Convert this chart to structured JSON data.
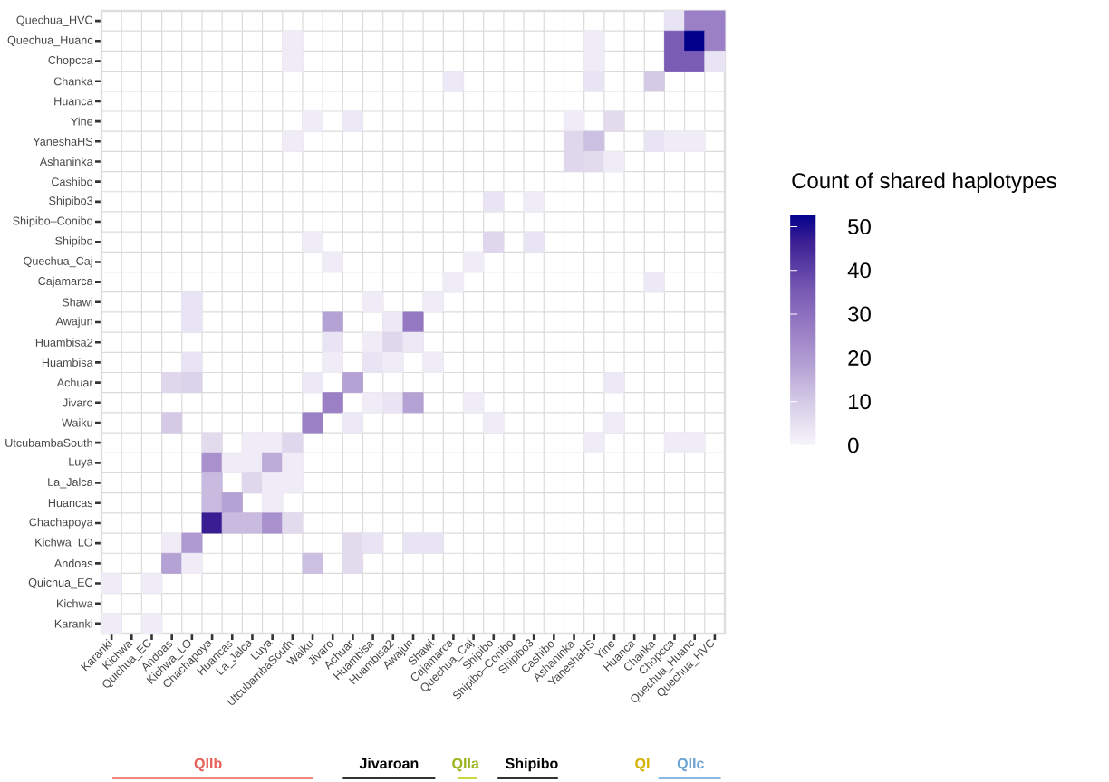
{
  "chart_data": {
    "type": "heatmap",
    "categories": [
      "Karanki",
      "Kichwa",
      "Quichua_EC",
      "Andoas",
      "Kichwa_LO",
      "Chachapoya",
      "Huancas",
      "La_Jalca",
      "Luya",
      "UtcubambaSouth",
      "Waiku",
      "Jivaro",
      "Achuar",
      "Huambisa",
      "Huambisa2",
      "Awajun",
      "Shawi",
      "Cajamarca",
      "Quechua_Caj",
      "Shipibo",
      "Shipibo–Conibo",
      "Shipibo3",
      "Cashibo",
      "Ashaninka",
      "YaneshaHS",
      "Yine",
      "Huanca",
      "Chanka",
      "Chopcca",
      "Quechua_Huanc",
      "Quechua_HVC"
    ],
    "y_categories": [
      "Quechua_HVC",
      "Quechua_Huanc",
      "Chopcca",
      "Chanka",
      "Huanca",
      "Yine",
      "YaneshaHS",
      "Ashaninka",
      "Cashibo",
      "Shipibo3",
      "Shipibo–Conibo",
      "Shipibo",
      "Quechua_Caj",
      "Cajamarca",
      "Shawi",
      "Awajun",
      "Huambisa2",
      "Huambisa",
      "Achuar",
      "Jivaro",
      "Waiku",
      "UtcubambaSouth",
      "Luya",
      "La_Jalca",
      "Huancas",
      "Chachapoya",
      "Kichwa_LO",
      "Andoas",
      "Quichua_EC",
      "Kichwa",
      "Karanki"
    ],
    "cells": [
      [
        null,
        null,
        null,
        null,
        null,
        null,
        null,
        null,
        null,
        null,
        null,
        null,
        null,
        null,
        null,
        null,
        null,
        null,
        null,
        null,
        null,
        null,
        null,
        null,
        null,
        null,
        null,
        null,
        4,
        26,
        26
      ],
      [
        null,
        null,
        null,
        null,
        null,
        null,
        null,
        null,
        null,
        2,
        null,
        null,
        null,
        null,
        null,
        null,
        null,
        null,
        null,
        null,
        null,
        null,
        null,
        null,
        2,
        null,
        null,
        null,
        35,
        53,
        26
      ],
      [
        null,
        null,
        null,
        null,
        null,
        null,
        null,
        null,
        null,
        2,
        null,
        null,
        null,
        null,
        null,
        null,
        null,
        null,
        null,
        null,
        null,
        null,
        null,
        null,
        2,
        null,
        null,
        null,
        35,
        35,
        4
      ],
      [
        null,
        null,
        null,
        null,
        null,
        null,
        null,
        null,
        null,
        null,
        null,
        null,
        null,
        null,
        null,
        null,
        null,
        3,
        null,
        null,
        null,
        null,
        null,
        null,
        4,
        null,
        null,
        10,
        null,
        null,
        null
      ],
      [
        null,
        null,
        null,
        null,
        null,
        null,
        null,
        null,
        null,
        null,
        null,
        null,
        null,
        null,
        null,
        null,
        null,
        null,
        null,
        null,
        null,
        null,
        null,
        null,
        null,
        null,
        null,
        null,
        null,
        null,
        null
      ],
      [
        null,
        null,
        null,
        null,
        null,
        null,
        null,
        null,
        null,
        null,
        2,
        null,
        3,
        null,
        null,
        null,
        null,
        null,
        null,
        null,
        null,
        null,
        null,
        2,
        null,
        6,
        null,
        null,
        null,
        null,
        null
      ],
      [
        null,
        null,
        null,
        null,
        null,
        null,
        null,
        null,
        null,
        2,
        null,
        null,
        null,
        null,
        null,
        null,
        null,
        null,
        null,
        null,
        null,
        null,
        null,
        7,
        12,
        null,
        null,
        4,
        2,
        2,
        null
      ],
      [
        null,
        null,
        null,
        null,
        null,
        null,
        null,
        null,
        null,
        null,
        null,
        null,
        null,
        null,
        null,
        null,
        null,
        null,
        null,
        null,
        null,
        null,
        null,
        7,
        6,
        2,
        null,
        null,
        null,
        null,
        null
      ],
      [
        null,
        null,
        null,
        null,
        null,
        null,
        null,
        null,
        null,
        null,
        null,
        null,
        null,
        null,
        null,
        null,
        null,
        null,
        null,
        null,
        null,
        null,
        null,
        null,
        null,
        null,
        null,
        null,
        null,
        null,
        null
      ],
      [
        null,
        null,
        null,
        null,
        null,
        null,
        null,
        null,
        null,
        null,
        null,
        null,
        null,
        null,
        null,
        null,
        null,
        null,
        null,
        4,
        null,
        2,
        null,
        null,
        null,
        null,
        null,
        null,
        null,
        null,
        null
      ],
      [
        null,
        null,
        null,
        null,
        null,
        null,
        null,
        null,
        null,
        null,
        null,
        null,
        null,
        null,
        null,
        null,
        null,
        null,
        null,
        null,
        null,
        null,
        null,
        null,
        null,
        null,
        null,
        null,
        null,
        null,
        null
      ],
      [
        null,
        null,
        null,
        null,
        null,
        null,
        null,
        null,
        null,
        null,
        2,
        null,
        null,
        null,
        null,
        null,
        null,
        null,
        null,
        7,
        null,
        4,
        null,
        null,
        null,
        null,
        null,
        null,
        null,
        null,
        null
      ],
      [
        null,
        null,
        null,
        null,
        null,
        null,
        null,
        null,
        null,
        null,
        null,
        2,
        null,
        null,
        null,
        null,
        null,
        null,
        2,
        null,
        null,
        null,
        null,
        null,
        null,
        null,
        null,
        null,
        null,
        null,
        null
      ],
      [
        null,
        null,
        null,
        null,
        null,
        null,
        null,
        null,
        null,
        null,
        null,
        null,
        null,
        null,
        null,
        null,
        null,
        2,
        null,
        null,
        null,
        null,
        null,
        null,
        null,
        null,
        null,
        3,
        null,
        null,
        null
      ],
      [
        null,
        null,
        null,
        null,
        4,
        null,
        null,
        null,
        null,
        null,
        null,
        null,
        null,
        2,
        null,
        null,
        2,
        null,
        null,
        null,
        null,
        null,
        null,
        null,
        null,
        null,
        null,
        null,
        null,
        null,
        null
      ],
      [
        null,
        null,
        null,
        null,
        4,
        null,
        null,
        null,
        null,
        null,
        null,
        18,
        null,
        null,
        3,
        28,
        null,
        null,
        null,
        null,
        null,
        null,
        null,
        null,
        null,
        null,
        null,
        null,
        null,
        null,
        null
      ],
      [
        null,
        null,
        null,
        null,
        null,
        null,
        null,
        null,
        null,
        null,
        null,
        4,
        null,
        2,
        7,
        3,
        null,
        null,
        null,
        null,
        null,
        null,
        null,
        null,
        null,
        null,
        null,
        null,
        null,
        null,
        null
      ],
      [
        null,
        null,
        null,
        null,
        4,
        null,
        null,
        null,
        null,
        null,
        null,
        2,
        null,
        4,
        2,
        null,
        2,
        null,
        null,
        null,
        null,
        null,
        null,
        null,
        null,
        null,
        null,
        null,
        null,
        null,
        null
      ],
      [
        null,
        null,
        null,
        7,
        8,
        null,
        null,
        null,
        null,
        null,
        3,
        null,
        18,
        null,
        null,
        null,
        null,
        null,
        null,
        null,
        null,
        null,
        null,
        null,
        null,
        3,
        null,
        null,
        null,
        null,
        null
      ],
      [
        null,
        null,
        null,
        null,
        null,
        null,
        null,
        null,
        null,
        null,
        null,
        26,
        null,
        2,
        4,
        18,
        null,
        null,
        2,
        null,
        null,
        null,
        null,
        null,
        null,
        null,
        null,
        null,
        null,
        null,
        null
      ],
      [
        null,
        null,
        null,
        10,
        null,
        null,
        null,
        null,
        null,
        null,
        26,
        null,
        3,
        null,
        null,
        null,
        null,
        null,
        null,
        2,
        null,
        null,
        null,
        null,
        null,
        2,
        null,
        null,
        null,
        null,
        null
      ],
      [
        null,
        null,
        null,
        null,
        null,
        6,
        null,
        2,
        2,
        7,
        null,
        null,
        null,
        null,
        null,
        null,
        null,
        null,
        null,
        null,
        null,
        null,
        null,
        null,
        2,
        null,
        null,
        null,
        2,
        2,
        null
      ],
      [
        null,
        null,
        null,
        null,
        null,
        22,
        2,
        2,
        16,
        2,
        null,
        null,
        null,
        null,
        null,
        null,
        null,
        null,
        null,
        null,
        null,
        null,
        null,
        null,
        null,
        null,
        null,
        null,
        null,
        null,
        null
      ],
      [
        null,
        null,
        null,
        null,
        null,
        13,
        null,
        7,
        2,
        2,
        null,
        null,
        null,
        null,
        null,
        null,
        null,
        null,
        null,
        null,
        null,
        null,
        null,
        null,
        null,
        null,
        null,
        null,
        null,
        null,
        null
      ],
      [
        null,
        null,
        null,
        null,
        null,
        13,
        18,
        null,
        2,
        null,
        null,
        null,
        null,
        null,
        null,
        null,
        null,
        null,
        null,
        null,
        null,
        null,
        null,
        null,
        null,
        null,
        null,
        null,
        null,
        null,
        null
      ],
      [
        null,
        null,
        null,
        null,
        null,
        47,
        13,
        13,
        22,
        6,
        null,
        null,
        null,
        null,
        null,
        null,
        null,
        null,
        null,
        null,
        null,
        null,
        null,
        null,
        null,
        null,
        null,
        null,
        null,
        null,
        null
      ],
      [
        null,
        null,
        null,
        2,
        20,
        null,
        null,
        null,
        null,
        null,
        null,
        null,
        6,
        4,
        null,
        4,
        4,
        null,
        null,
        null,
        null,
        null,
        null,
        null,
        null,
        null,
        null,
        null,
        null,
        null,
        null
      ],
      [
        null,
        null,
        null,
        18,
        2,
        null,
        null,
        null,
        null,
        null,
        12,
        null,
        6,
        null,
        null,
        null,
        null,
        null,
        null,
        null,
        null,
        null,
        null,
        null,
        null,
        null,
        null,
        null,
        null,
        null,
        null
      ],
      [
        2,
        null,
        2,
        null,
        null,
        null,
        null,
        null,
        null,
        null,
        null,
        null,
        null,
        null,
        null,
        null,
        null,
        null,
        null,
        null,
        null,
        null,
        null,
        null,
        null,
        null,
        null,
        null,
        null,
        null,
        null
      ],
      [
        null,
        null,
        null,
        null,
        null,
        null,
        null,
        null,
        null,
        null,
        null,
        null,
        null,
        null,
        null,
        null,
        null,
        null,
        null,
        null,
        null,
        null,
        null,
        null,
        null,
        null,
        null,
        null,
        null,
        null,
        null
      ],
      [
        2,
        null,
        2,
        null,
        null,
        null,
        null,
        null,
        null,
        null,
        null,
        null,
        null,
        null,
        null,
        null,
        null,
        null,
        null,
        null,
        null,
        null,
        null,
        null,
        null,
        null,
        null,
        null,
        null,
        null,
        null
      ]
    ],
    "clim": [
      0,
      53
    ],
    "cticks": [
      0,
      10,
      20,
      30,
      40,
      50
    ],
    "clabel": "Count of shared haplotypes",
    "grid": true,
    "annotations": [
      "QIIb",
      "Jivaroan",
      "QIIa",
      "Shipibo",
      "QI",
      "QIIc"
    ]
  }
}
